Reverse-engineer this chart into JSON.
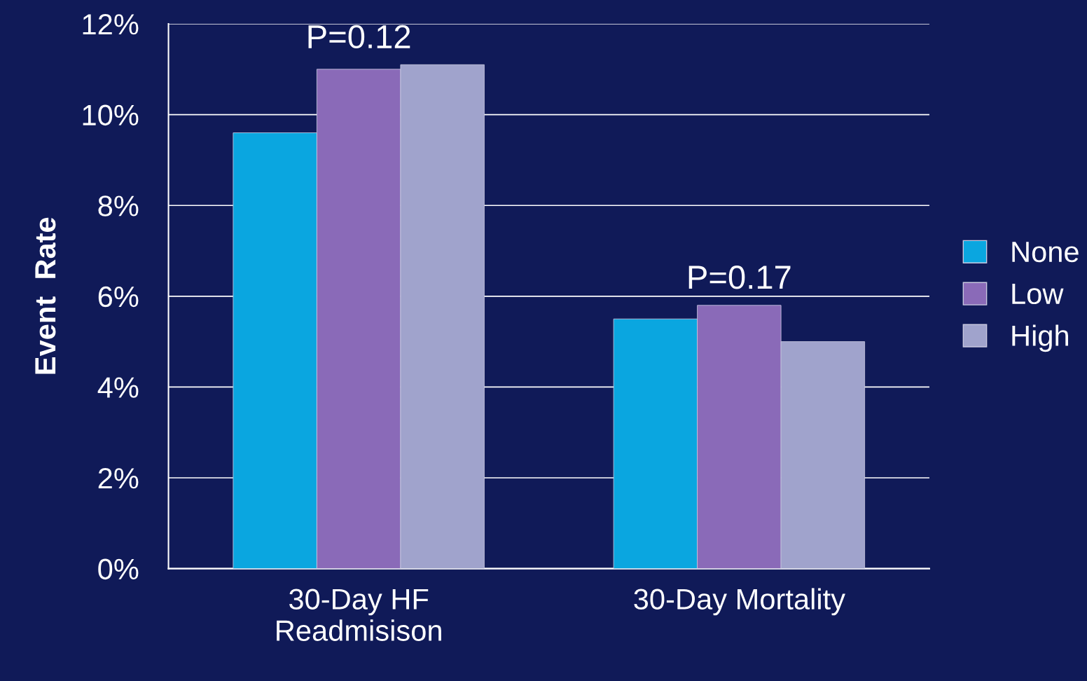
{
  "chart_data": {
    "type": "bar",
    "ylabel": "Event  Rate",
    "categories": [
      "30-Day HF\nReadmisison",
      "30-Day Mortality"
    ],
    "series": [
      {
        "name": "None",
        "color": "#0aa6e0",
        "values": [
          9.6,
          5.5
        ]
      },
      {
        "name": "Low",
        "color": "#8a6ab8",
        "values": [
          11.0,
          5.8
        ]
      },
      {
        "name": "High",
        "color": "#a0a3cc",
        "values": [
          11.1,
          5.0
        ]
      }
    ],
    "ylim": [
      0,
      12
    ],
    "yticks": [
      {
        "value": 0,
        "label": "0%"
      },
      {
        "value": 2,
        "label": "2%"
      },
      {
        "value": 4,
        "label": "4%"
      },
      {
        "value": 6,
        "label": "6%"
      },
      {
        "value": 8,
        "label": "8%"
      },
      {
        "value": 10,
        "label": "10%"
      },
      {
        "value": 12,
        "label": "12%"
      }
    ],
    "grid": "y",
    "legend": "right",
    "annotations": [
      "P=0.12",
      "P=0.17"
    ]
  }
}
